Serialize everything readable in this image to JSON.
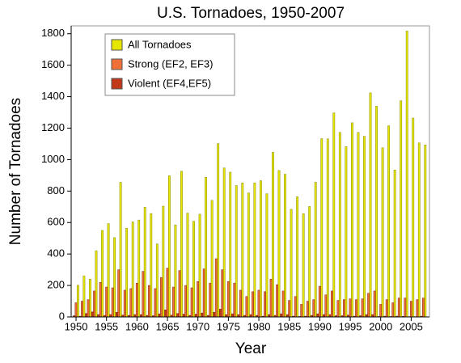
{
  "chart_data": {
    "type": "bar",
    "title": "U.S. Tornadoes, 1950-2007",
    "x_label": "Year",
    "y_label": "Number of Tornadoes",
    "x": [
      1950,
      1951,
      1952,
      1953,
      1954,
      1955,
      1956,
      1957,
      1958,
      1959,
      1960,
      1961,
      1962,
      1963,
      1964,
      1965,
      1966,
      1967,
      1968,
      1969,
      1970,
      1971,
      1972,
      1973,
      1974,
      1975,
      1976,
      1977,
      1978,
      1979,
      1980,
      1981,
      1982,
      1983,
      1984,
      1985,
      1986,
      1987,
      1988,
      1989,
      1990,
      1991,
      1992,
      1993,
      1994,
      1995,
      1996,
      1997,
      1998,
      1999,
      2000,
      2001,
      2002,
      2003,
      2004,
      2005,
      2006,
      2007
    ],
    "series": [
      {
        "name": "All Tornadoes",
        "color": "#e6e600",
        "values": [
          201,
          260,
          240,
          421,
          550,
          593,
          504,
          856,
          564,
          604,
          616,
          697,
          657,
          464,
          704,
          897,
          585,
          926,
          660,
          608,
          653,
          888,
          741,
          1102,
          947,
          920,
          835,
          852,
          788,
          852,
          866,
          783,
          1046,
          931,
          907,
          684,
          764,
          656,
          702,
          856,
          1133,
          1132,
          1297,
          1173,
          1082,
          1234,
          1173,
          1148,
          1424,
          1339,
          1075,
          1215,
          934,
          1374,
          1817,
          1264,
          1106,
          1093
        ]
      },
      {
        "name": "Strong (EF2, EF3)",
        "color": "#f07038",
        "values": [
          90,
          100,
          110,
          165,
          220,
          190,
          185,
          300,
          170,
          180,
          215,
          290,
          200,
          180,
          250,
          310,
          190,
          295,
          200,
          185,
          225,
          305,
          215,
          370,
          300,
          225,
          215,
          170,
          130,
          160,
          170,
          160,
          240,
          205,
          165,
          105,
          130,
          80,
          100,
          110,
          195,
          140,
          165,
          105,
          110,
          115,
          110,
          115,
          150,
          165,
          80,
          110,
          90,
          120,
          120,
          100,
          110,
          120
        ]
      },
      {
        "name": "Violent (EF4,EF5)",
        "color": "#c03818",
        "values": [
          8,
          5,
          22,
          32,
          15,
          10,
          15,
          30,
          12,
          10,
          15,
          15,
          10,
          8,
          20,
          45,
          12,
          22,
          18,
          10,
          18,
          25,
          10,
          30,
          50,
          15,
          20,
          15,
          10,
          15,
          10,
          5,
          15,
          10,
          20,
          15,
          5,
          3,
          5,
          10,
          20,
          15,
          15,
          8,
          8,
          12,
          5,
          8,
          15,
          15,
          3,
          5,
          3,
          5,
          4,
          2,
          2,
          5
        ]
      }
    ],
    "xlim": [
      1949.2,
      2008
    ],
    "xticks": [
      1950,
      1955,
      1960,
      1965,
      1970,
      1975,
      1980,
      1985,
      1990,
      1995,
      2000,
      2005
    ],
    "ylim": [
      0,
      1850
    ],
    "yticks": [
      0,
      200,
      400,
      600,
      800,
      1000,
      1200,
      1400,
      1600,
      1800
    ],
    "legend": "upper left"
  }
}
